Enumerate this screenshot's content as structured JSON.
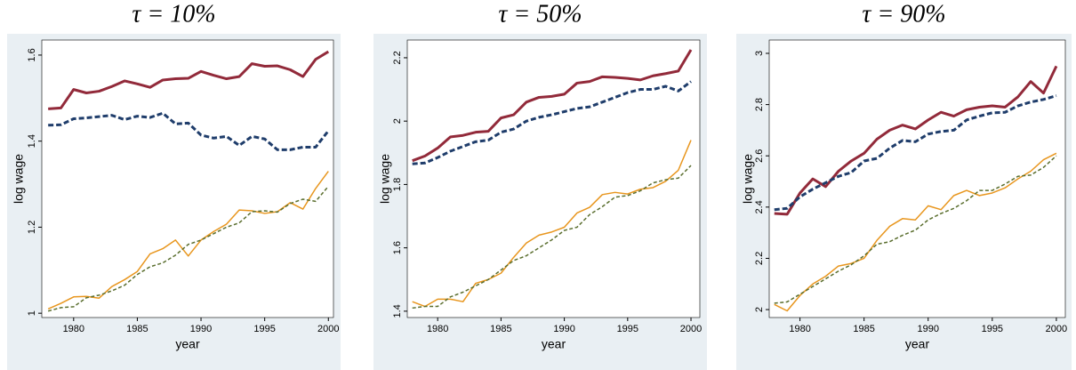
{
  "chart_data": [
    {
      "type": "line",
      "title": "τ = 10%",
      "ylabel": "log wage",
      "xlabel": "year",
      "x": [
        1978,
        1979,
        1980,
        1981,
        1982,
        1983,
        1984,
        1985,
        1986,
        1987,
        1988,
        1989,
        1990,
        1991,
        1992,
        1993,
        1994,
        1995,
        1996,
        1997,
        1998,
        1999,
        2000
      ],
      "xlim": [
        1977.5,
        2000.4
      ],
      "xticks": [
        1980,
        1985,
        1990,
        1995,
        2000
      ],
      "ylim": [
        0.99,
        1.635
      ],
      "yticks": [
        1,
        1.2,
        1.4,
        1.6
      ],
      "series": [
        {
          "color": "#922a3a",
          "linestyle": "solid",
          "linewidth": 3,
          "values": [
            1.475,
            1.477,
            1.52,
            1.512,
            1.516,
            1.527,
            1.54,
            1.533,
            1.525,
            1.542,
            1.545,
            1.546,
            1.562,
            1.553,
            1.545,
            1.55,
            1.58,
            1.574,
            1.575,
            1.566,
            1.55,
            1.59,
            1.608
          ]
        },
        {
          "color": "#1f3d6b",
          "linestyle": "dashed",
          "linewidth": 3,
          "values": [
            1.437,
            1.438,
            1.452,
            1.454,
            1.457,
            1.46,
            1.45,
            1.458,
            1.455,
            1.465,
            1.44,
            1.442,
            1.414,
            1.407,
            1.411,
            1.39,
            1.411,
            1.405,
            1.38,
            1.38,
            1.386,
            1.386,
            1.424
          ]
        },
        {
          "color": "#e8961e",
          "linestyle": "solid",
          "linewidth": 1.5,
          "values": [
            1.01,
            1.023,
            1.038,
            1.039,
            1.035,
            1.062,
            1.078,
            1.097,
            1.138,
            1.15,
            1.17,
            1.133,
            1.17,
            1.19,
            1.207,
            1.24,
            1.238,
            1.232,
            1.236,
            1.257,
            1.242,
            1.29,
            1.33
          ]
        },
        {
          "color": "#5a6e2e",
          "linestyle": "dashed",
          "linewidth": 1.5,
          "values": [
            1.005,
            1.013,
            1.015,
            1.036,
            1.042,
            1.052,
            1.065,
            1.09,
            1.108,
            1.117,
            1.135,
            1.16,
            1.17,
            1.185,
            1.2,
            1.21,
            1.236,
            1.238,
            1.235,
            1.255,
            1.265,
            1.26,
            1.295
          ]
        }
      ]
    },
    {
      "type": "line",
      "title": "τ = 50%",
      "ylabel": "log wage",
      "xlabel": "year",
      "x": [
        1978,
        1979,
        1980,
        1981,
        1982,
        1983,
        1984,
        1985,
        1986,
        1987,
        1988,
        1989,
        1990,
        1991,
        1992,
        1993,
        1994,
        1995,
        1996,
        1997,
        1998,
        1999,
        2000
      ],
      "xlim": [
        1977.6,
        2000.7
      ],
      "xticks": [
        1980,
        1985,
        1990,
        1995,
        2000
      ],
      "ylim": [
        1.38,
        2.256
      ],
      "yticks": [
        1.4,
        1.6,
        1.8,
        2,
        2.2
      ],
      "series": [
        {
          "color": "#922a3a",
          "linestyle": "solid",
          "linewidth": 3,
          "values": [
            1.875,
            1.89,
            1.915,
            1.95,
            1.955,
            1.965,
            1.968,
            2.01,
            2.02,
            2.06,
            2.075,
            2.078,
            2.085,
            2.12,
            2.125,
            2.14,
            2.138,
            2.135,
            2.13,
            2.143,
            2.15,
            2.158,
            2.225
          ]
        },
        {
          "color": "#1f3d6b",
          "linestyle": "dashed",
          "linewidth": 3,
          "values": [
            1.865,
            1.868,
            1.885,
            1.905,
            1.92,
            1.935,
            1.94,
            1.965,
            1.975,
            2.0,
            2.012,
            2.02,
            2.03,
            2.04,
            2.045,
            2.06,
            2.075,
            2.09,
            2.1,
            2.1,
            2.11,
            2.095,
            2.125
          ]
        },
        {
          "color": "#e8961e",
          "linestyle": "solid",
          "linewidth": 1.5,
          "values": [
            1.43,
            1.415,
            1.438,
            1.438,
            1.43,
            1.488,
            1.5,
            1.52,
            1.57,
            1.615,
            1.64,
            1.65,
            1.665,
            1.71,
            1.728,
            1.768,
            1.775,
            1.77,
            1.785,
            1.79,
            1.81,
            1.845,
            1.94
          ]
        },
        {
          "color": "#5a6e2e",
          "linestyle": "dashed",
          "linewidth": 1.5,
          "values": [
            1.41,
            1.415,
            1.415,
            1.445,
            1.46,
            1.48,
            1.5,
            1.53,
            1.56,
            1.575,
            1.6,
            1.625,
            1.655,
            1.665,
            1.705,
            1.73,
            1.76,
            1.765,
            1.78,
            1.805,
            1.815,
            1.82,
            1.86
          ]
        }
      ]
    },
    {
      "type": "line",
      "title": "τ = 90%",
      "ylabel": "log wage",
      "xlabel": "year",
      "x": [
        1978,
        1979,
        1980,
        1981,
        1982,
        1983,
        1984,
        1985,
        1986,
        1987,
        1988,
        1989,
        1990,
        1991,
        1992,
        1993,
        1994,
        1995,
        1996,
        1997,
        1998,
        1999,
        2000
      ],
      "xlim": [
        1977.6,
        2000.7
      ],
      "xticks": [
        1980,
        1985,
        1990,
        1995,
        2000
      ],
      "ylim": [
        1.969,
        3.052
      ],
      "yticks": [
        2,
        2.2,
        2.4,
        2.6,
        2.8,
        3
      ],
      "series": [
        {
          "color": "#922a3a",
          "linestyle": "solid",
          "linewidth": 3,
          "values": [
            2.375,
            2.372,
            2.455,
            2.51,
            2.48,
            2.54,
            2.58,
            2.61,
            2.665,
            2.7,
            2.72,
            2.705,
            2.74,
            2.77,
            2.755,
            2.78,
            2.79,
            2.795,
            2.79,
            2.83,
            2.89,
            2.845,
            2.95
          ]
        },
        {
          "color": "#1f3d6b",
          "linestyle": "dashed",
          "linewidth": 3,
          "values": [
            2.39,
            2.395,
            2.44,
            2.47,
            2.495,
            2.52,
            2.535,
            2.58,
            2.59,
            2.63,
            2.66,
            2.655,
            2.685,
            2.695,
            2.7,
            2.74,
            2.755,
            2.768,
            2.77,
            2.795,
            2.81,
            2.82,
            2.835
          ]
        },
        {
          "color": "#e8961e",
          "linestyle": "solid",
          "linewidth": 1.5,
          "values": [
            2.02,
            1.995,
            2.055,
            2.1,
            2.13,
            2.17,
            2.18,
            2.2,
            2.27,
            2.325,
            2.355,
            2.35,
            2.405,
            2.39,
            2.445,
            2.465,
            2.445,
            2.455,
            2.475,
            2.51,
            2.54,
            2.585,
            2.61
          ]
        },
        {
          "color": "#5a6e2e",
          "linestyle": "dashed",
          "linewidth": 1.5,
          "values": [
            2.025,
            2.03,
            2.06,
            2.09,
            2.12,
            2.15,
            2.175,
            2.21,
            2.255,
            2.265,
            2.29,
            2.31,
            2.35,
            2.375,
            2.395,
            2.425,
            2.465,
            2.465,
            2.49,
            2.52,
            2.525,
            2.555,
            2.6
          ]
        }
      ]
    }
  ]
}
